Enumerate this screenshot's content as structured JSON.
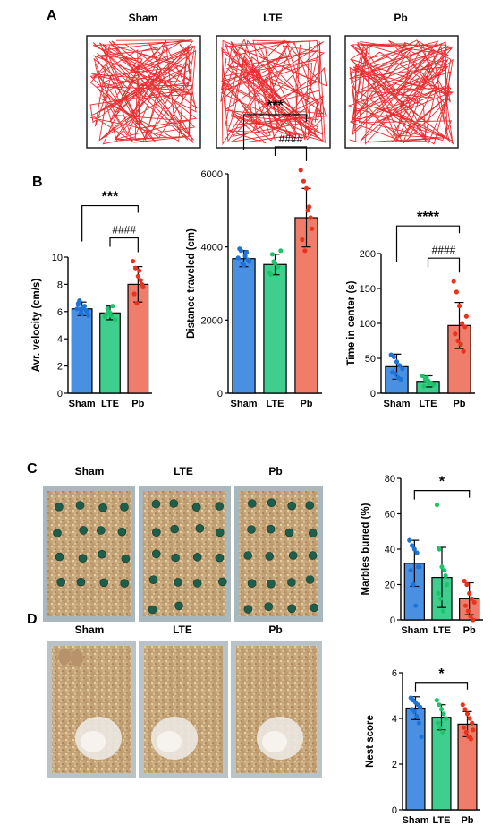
{
  "panels": {
    "A": {
      "letter": "A",
      "groups": [
        "Sham",
        "LTE",
        "Pb"
      ]
    },
    "B": {
      "letter": "B"
    },
    "C": {
      "letter": "C",
      "groups": [
        "Sham",
        "LTE",
        "Pb"
      ]
    },
    "D": {
      "letter": "D",
      "groups": [
        "Sham",
        "LTE",
        "Pb"
      ]
    }
  },
  "colors": {
    "Sham": "#4a90e2",
    "LTE": "#3ecf8e",
    "Pb": "#f07c6a",
    "trace": "#e8161b",
    "Sham_dot": "#1e74d6",
    "LTE_dot": "#1dc46b",
    "Pb_dot": "#e8341c"
  },
  "chart_data": [
    {
      "id": "velocity",
      "type": "bar",
      "categories": [
        "Sham",
        "LTE",
        "Pb"
      ],
      "values": [
        6.2,
        5.9,
        8.0
      ],
      "errors": [
        0.5,
        0.5,
        1.3
      ],
      "points": [
        [
          6.2,
          6.8,
          5.8,
          6.4,
          6.0,
          6.6,
          5.9,
          6.3,
          6.1,
          5.7,
          6.5,
          6.2
        ],
        [
          5.6,
          6.2,
          5.9,
          6.4,
          5.4,
          5.8,
          6.0,
          5.7
        ],
        [
          9.7,
          9.2,
          8.6,
          8.3,
          7.8,
          7.3,
          6.6,
          9.0,
          8.0
        ]
      ],
      "ylabel": "Avr. velocity (cm/s)",
      "ylim": [
        0,
        10
      ],
      "yticks": [
        "0",
        "2",
        "4",
        "6",
        "8",
        "10"
      ],
      "sig": [
        {
          "label": "***",
          "from": 0,
          "to": 2
        },
        {
          "label": "####",
          "from": 1,
          "to": 2
        }
      ]
    },
    {
      "id": "distance",
      "type": "bar",
      "categories": [
        "Sham",
        "LTE",
        "Pb"
      ],
      "values": [
        3680,
        3520,
        4800
      ],
      "errors": [
        220,
        280,
        800
      ],
      "points": [
        [
          3700,
          3900,
          3500,
          3850,
          3600,
          3950,
          3550,
          3750,
          3650
        ],
        [
          3300,
          3800,
          3550,
          3450,
          3900,
          3250,
          3600
        ],
        [
          6100,
          5800,
          5600,
          5100,
          4500,
          4200,
          3900,
          5000,
          4800
        ]
      ],
      "ylabel": "Distance traveled (cm)",
      "ylim": [
        0,
        6000
      ],
      "yticks": [
        "0",
        "2000",
        "4000",
        "6000"
      ],
      "sig": [
        {
          "label": "***",
          "from": 0,
          "to": 2
        },
        {
          "label": "####",
          "from": 1,
          "to": 2
        }
      ]
    },
    {
      "id": "center",
      "type": "bar",
      "categories": [
        "Sham",
        "LTE",
        "Pb"
      ],
      "values": [
        38,
        17,
        97
      ],
      "errors": [
        18,
        8,
        33
      ],
      "points": [
        [
          55,
          52,
          45,
          40,
          35,
          30,
          28,
          22,
          20
        ],
        [
          25,
          20,
          18,
          15,
          12,
          10,
          22,
          14
        ],
        [
          160,
          145,
          125,
          100,
          95,
          85,
          75,
          70,
          60,
          110
        ]
      ],
      "ylabel": "Time in center (s)",
      "ylim": [
        0,
        200
      ],
      "yticks": [
        "0",
        "50",
        "100",
        "150",
        "200"
      ],
      "sig": [
        {
          "label": "****",
          "from": 0,
          "to": 2
        },
        {
          "label": "####",
          "from": 1,
          "to": 2
        }
      ]
    },
    {
      "id": "marbles",
      "type": "bar",
      "categories": [
        "Sham",
        "LTE",
        "Pb"
      ],
      "values": [
        32,
        24,
        12
      ],
      "errors": [
        13,
        17,
        9
      ],
      "points": [
        [
          45,
          42,
          40,
          38,
          30,
          28,
          20,
          8,
          30
        ],
        [
          65,
          40,
          30,
          28,
          20,
          15,
          12,
          5,
          25
        ],
        [
          22,
          20,
          15,
          12,
          10,
          8,
          5,
          2,
          0
        ]
      ],
      "ylabel": "Marbles buried (%)",
      "ylim": [
        0,
        80
      ],
      "yticks": [
        "0",
        "20",
        "40",
        "60",
        "80"
      ],
      "sig": [
        {
          "label": "*",
          "from": 0,
          "to": 2
        }
      ]
    },
    {
      "id": "nest",
      "type": "bar",
      "categories": [
        "Sham",
        "LTE",
        "Pb"
      ],
      "values": [
        4.45,
        4.05,
        3.75
      ],
      "errors": [
        0.5,
        0.55,
        0.55
      ],
      "points": [
        [
          4.9,
          4.8,
          4.7,
          4.6,
          4.5,
          4.4,
          4.3,
          4.1,
          3.8,
          3.2
        ],
        [
          4.8,
          4.6,
          4.4,
          4.2,
          4.0,
          3.8,
          3.6,
          3.4
        ],
        [
          4.6,
          4.4,
          4.2,
          4.0,
          3.8,
          3.6,
          3.4,
          3.2,
          3.1,
          3.5
        ]
      ],
      "ylabel": "Nest score",
      "ylim": [
        0,
        6
      ],
      "yticks": [
        "0",
        "2",
        "4",
        "6"
      ],
      "sig": [
        {
          "label": "*",
          "from": 0,
          "to": 2
        }
      ]
    }
  ]
}
